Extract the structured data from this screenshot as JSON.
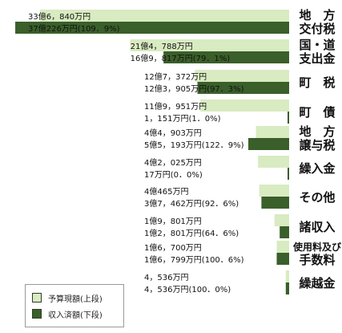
{
  "chart_data": {
    "type": "bar",
    "orientation": "horizontal",
    "title": "",
    "xlabel": "",
    "ylabel": "",
    "unit": "億円",
    "xlim": [
      0,
      38
    ],
    "grid": false,
    "legend_position": "bottom-left",
    "colors": {
      "budget": "#d8ebc1",
      "received": "#3a5f2a"
    },
    "series": [
      {
        "name": "予算現額(上段)"
      },
      {
        "name": "収入済額(下段)"
      }
    ],
    "categories": [
      {
        "label_lines": [
          "地　方",
          "交付税"
        ],
        "budget": 33.684,
        "received": 37.0226,
        "budget_label": "33億6，840万円",
        "received_label": "37億226万円(109．9%)"
      },
      {
        "label_lines": [
          "国・道",
          "支出金"
        ],
        "budget": 21.4788,
        "received": 16.9817,
        "budget_label": "21億4，788万円",
        "received_label": "16億9，817万円(79．1%)"
      },
      {
        "label_lines": [
          "町　税"
        ],
        "budget": 12.7372,
        "received": 12.3905,
        "budget_label": "12億7，372万円",
        "received_label": "12億3，905万円(97．3%)"
      },
      {
        "label_lines": [
          "町　債"
        ],
        "budget": 11.9951,
        "received": 0.1151,
        "budget_label": "11億9，951万円",
        "received_label": "1，151万円(1．0%)"
      },
      {
        "label_lines": [
          "地　方",
          "譲与税"
        ],
        "budget": 4.4903,
        "received": 5.5193,
        "budget_label": "4億4，903万円",
        "received_label": "5億5，193万円(122．9%)"
      },
      {
        "label_lines": [
          "繰入金"
        ],
        "budget": 4.2025,
        "received": 0.0017,
        "budget_label": "4億2，025万円",
        "received_label": "17万円(0．0%)"
      },
      {
        "label_lines": [
          "その他"
        ],
        "budget": 4.0465,
        "received": 3.7462,
        "budget_label": "4億465万円",
        "received_label": "3億7，462万円(92．6%)"
      },
      {
        "label_lines": [
          "諸収入"
        ],
        "budget": 1.9801,
        "received": 1.2801,
        "budget_label": "1億9，801万円",
        "received_label": "1億2，801万円(64．6%)"
      },
      {
        "label_lines": [
          "使用料及び",
          "手数料"
        ],
        "budget": 1.67,
        "received": 1.6799,
        "budget_label": "1億6，700万円",
        "received_label": "1億6，799万円(100．6%)"
      },
      {
        "label_lines": [
          "繰越金"
        ],
        "budget": 0.4536,
        "received": 0.4536,
        "budget_label": "4，536万円",
        "received_label": "4，536万円(100．0%)"
      }
    ]
  }
}
